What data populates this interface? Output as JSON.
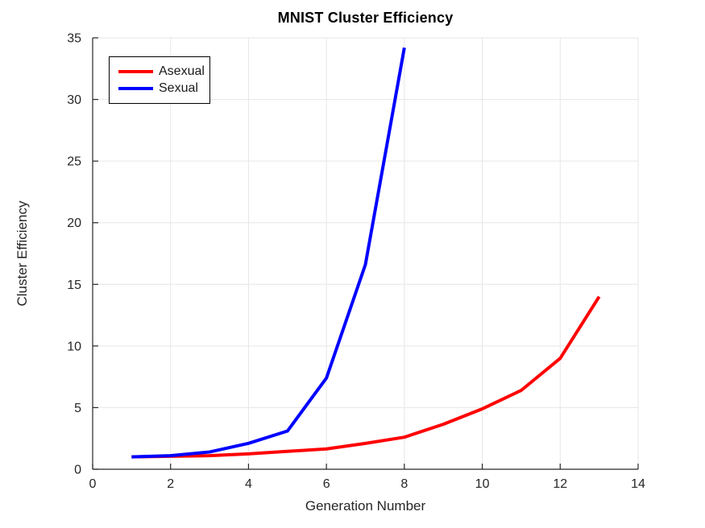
{
  "chart_data": {
    "type": "line",
    "title": "MNIST Cluster Efficiency",
    "xlabel": "Generation Number",
    "ylabel": "Cluster Efficiency",
    "xlim": [
      0,
      14
    ],
    "ylim": [
      0,
      35
    ],
    "xticks": [
      0,
      2,
      4,
      6,
      8,
      10,
      12,
      14
    ],
    "yticks": [
      0,
      5,
      10,
      15,
      20,
      25,
      30,
      35
    ],
    "grid": true,
    "legend_position": "top-left",
    "colors": {
      "axis": "#262626",
      "grid": "#e6e6e6",
      "background": "#ffffff"
    },
    "series": [
      {
        "name": "Asexual",
        "color": "#ff0000",
        "x": [
          1,
          2,
          3,
          4,
          5,
          6,
          7,
          8,
          9,
          10,
          11,
          12,
          13
        ],
        "y": [
          1.0,
          1.05,
          1.1,
          1.25,
          1.45,
          1.65,
          2.1,
          2.6,
          3.65,
          4.9,
          6.4,
          9.0,
          14.0
        ]
      },
      {
        "name": "Sexual",
        "color": "#0000ff",
        "x": [
          1,
          2,
          3,
          4,
          5,
          6,
          7,
          8
        ],
        "y": [
          1.0,
          1.1,
          1.4,
          2.1,
          3.1,
          7.4,
          16.6,
          34.2
        ]
      }
    ]
  }
}
